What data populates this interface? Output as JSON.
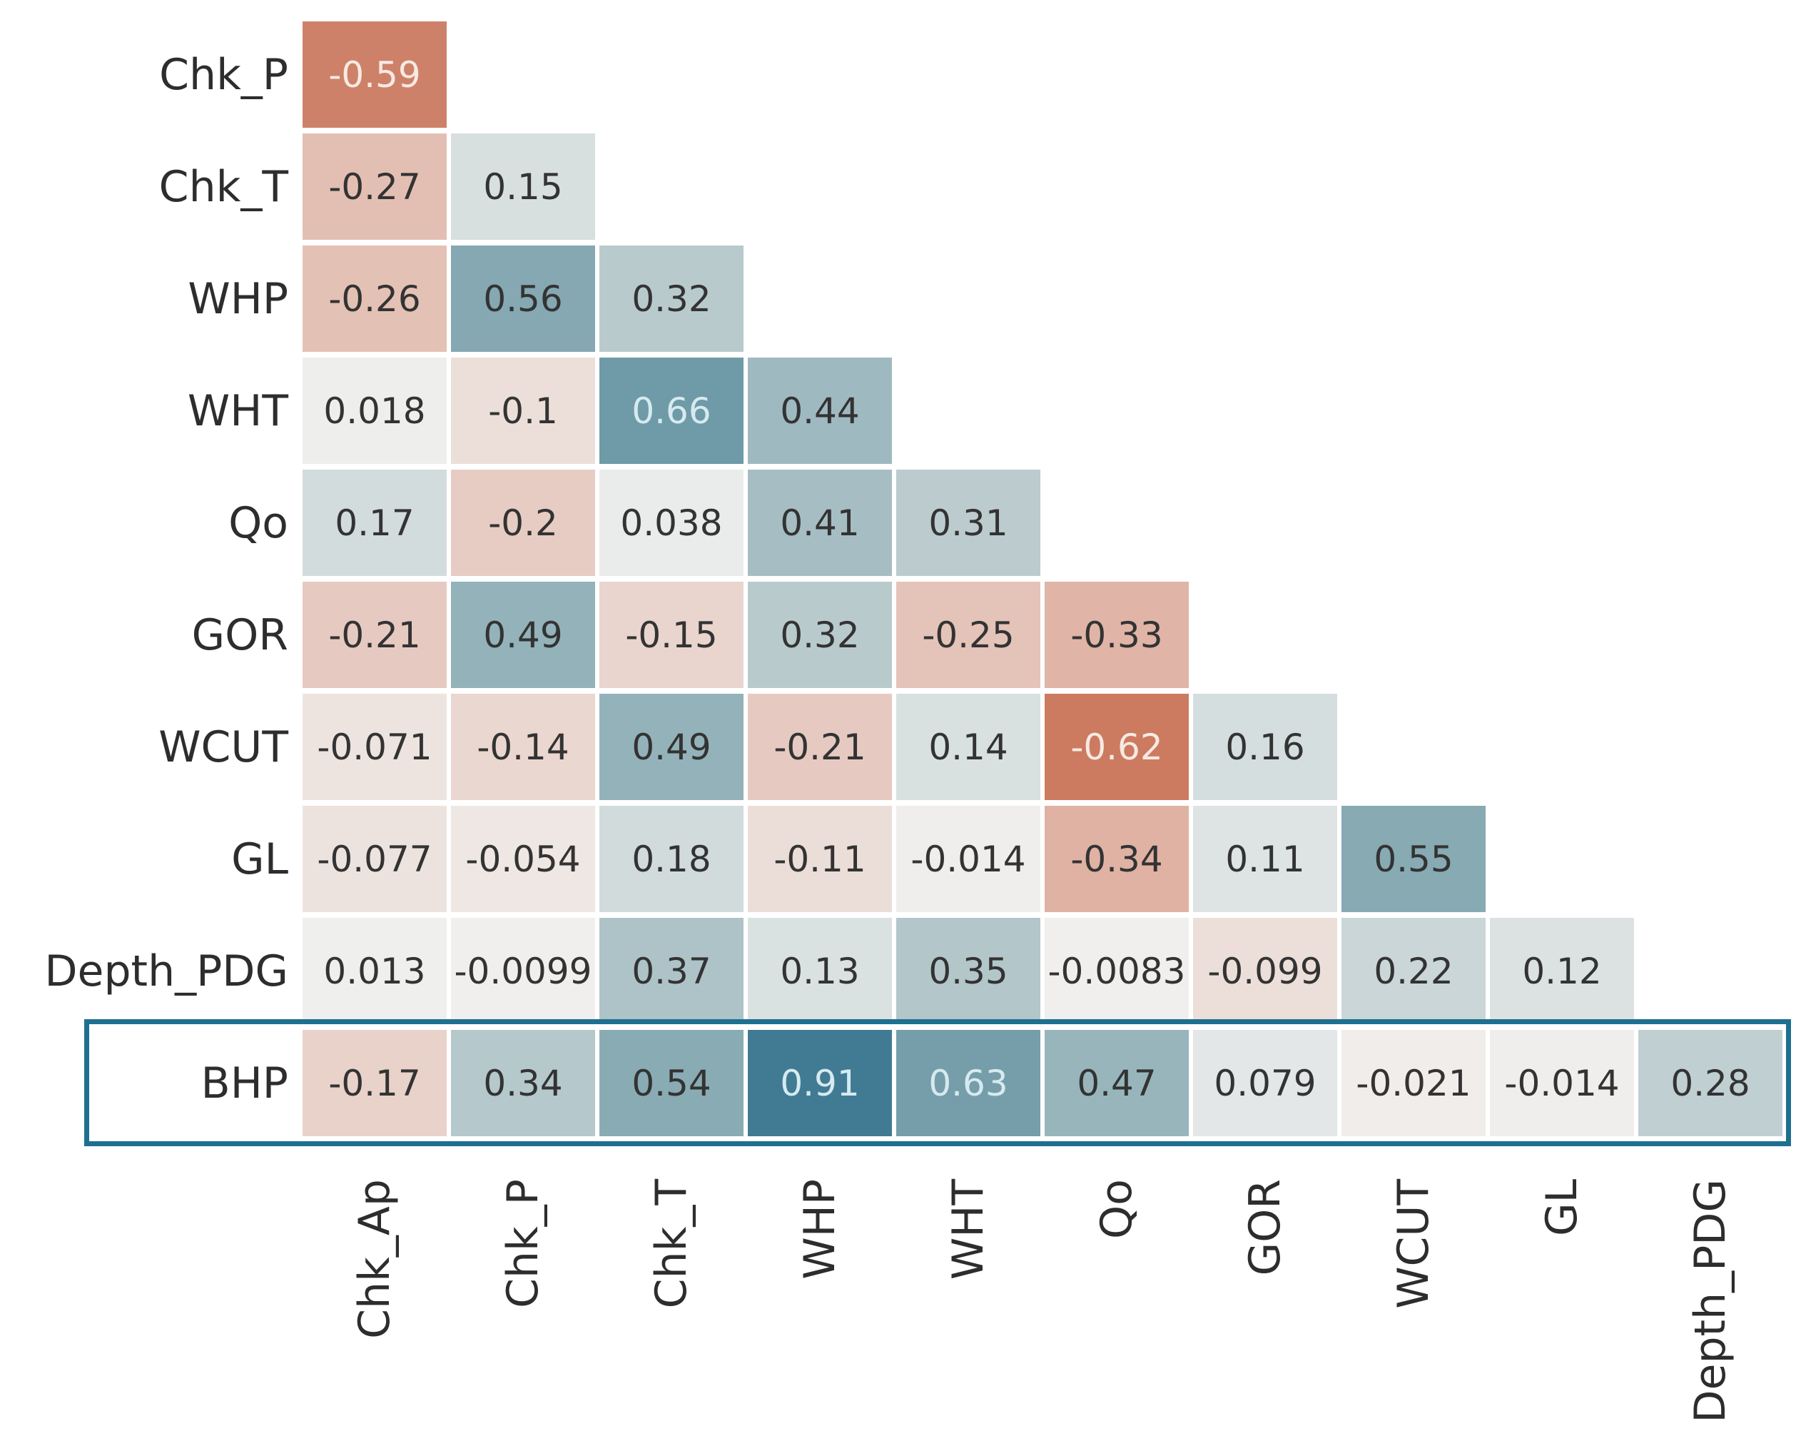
{
  "chart_data": {
    "type": "heatmap",
    "title": "",
    "description": "Lower-triangular correlation heatmap; BHP row highlighted with rectangle",
    "columns": [
      "Chk_Ap",
      "Chk_P",
      "Chk_T",
      "WHP",
      "WHT",
      "Qo",
      "GOR",
      "WCUT",
      "GL",
      "Depth_PDG"
    ],
    "rows": [
      {
        "label": "Chk_P",
        "values": [
          -0.59
        ],
        "texts": [
          "-0.59"
        ]
      },
      {
        "label": "Chk_T",
        "values": [
          -0.27,
          0.15
        ],
        "texts": [
          "-0.27",
          "0.15"
        ]
      },
      {
        "label": "WHP",
        "values": [
          -0.26,
          0.56,
          0.32
        ],
        "texts": [
          "-0.26",
          "0.56",
          "0.32"
        ]
      },
      {
        "label": "WHT",
        "values": [
          0.018,
          -0.1,
          0.66,
          0.44
        ],
        "texts": [
          "0.018",
          "-0.1",
          "0.66",
          "0.44"
        ]
      },
      {
        "label": "Qo",
        "values": [
          0.17,
          -0.2,
          0.038,
          0.41,
          0.31
        ],
        "texts": [
          "0.17",
          "-0.2",
          "0.038",
          "0.41",
          "0.31"
        ]
      },
      {
        "label": "GOR",
        "values": [
          -0.21,
          0.49,
          -0.15,
          0.32,
          -0.25,
          -0.33
        ],
        "texts": [
          "-0.21",
          "0.49",
          "-0.15",
          "0.32",
          "-0.25",
          "-0.33"
        ]
      },
      {
        "label": "WCUT",
        "values": [
          -0.071,
          -0.14,
          0.49,
          -0.21,
          0.14,
          -0.62,
          0.16
        ],
        "texts": [
          "-0.071",
          "-0.14",
          "0.49",
          "-0.21",
          "0.14",
          "-0.62",
          "0.16"
        ]
      },
      {
        "label": "GL",
        "values": [
          -0.077,
          -0.054,
          0.18,
          -0.11,
          -0.014,
          -0.34,
          0.11,
          0.55
        ],
        "texts": [
          "-0.077",
          "-0.054",
          "0.18",
          "-0.11",
          "-0.014",
          "-0.34",
          "0.11",
          "0.55"
        ]
      },
      {
        "label": "Depth_PDG",
        "values": [
          0.013,
          -0.0099,
          0.37,
          0.13,
          0.35,
          -0.0083,
          -0.099,
          0.22,
          0.12
        ],
        "texts": [
          "0.013",
          "-0.0099",
          "0.37",
          "0.13",
          "0.35",
          "-0.0083",
          "-0.099",
          "0.22",
          "0.12"
        ]
      },
      {
        "label": "BHP",
        "values": [
          -0.17,
          0.34,
          0.54,
          0.91,
          0.63,
          0.47,
          0.079,
          -0.021,
          -0.014,
          0.28
        ],
        "texts": [
          "-0.17",
          "0.34",
          "0.54",
          "0.91",
          "0.63",
          "0.47",
          "0.079",
          "-0.021",
          "-0.014",
          "0.28"
        ]
      }
    ],
    "highlighted_row": "BHP",
    "value_range": [
      -1,
      1
    ],
    "grid": false,
    "legend": "none",
    "colors": {
      "zero": "#F1F1EF",
      "positive_low": "#B7C9CC",
      "positive_mid": "#6F9AA7",
      "positive_end": "#30708C",
      "negative_low": "#E0B4A6",
      "negative_mid": "#C97358",
      "negative_end": "#B23318",
      "annotation_dark_text": "#333333",
      "annotation_light_text_positive": "#D6EAF0",
      "annotation_light_text_negative": "#F7EAE3",
      "label_text": "#2d2d2d",
      "highlight_border": "#1E6F90",
      "background": "#ffffff"
    }
  }
}
